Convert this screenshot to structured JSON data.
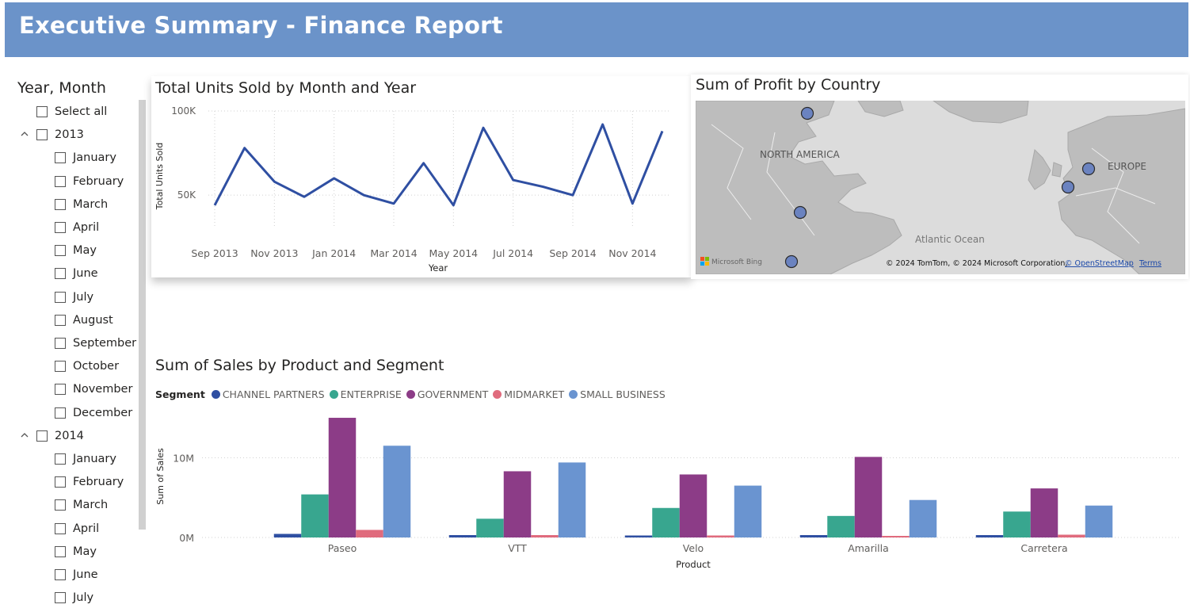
{
  "header": {
    "title": "Executive Summary - Finance Report"
  },
  "slicer": {
    "title": "Year, Month",
    "select_all": "Select all",
    "years": [
      {
        "label": "2013",
        "months": [
          "January",
          "February",
          "March",
          "April",
          "May",
          "June",
          "July",
          "August",
          "September",
          "October",
          "November",
          "December"
        ]
      },
      {
        "label": "2014",
        "months": [
          "January",
          "February",
          "March",
          "April",
          "May",
          "June",
          "July"
        ]
      }
    ]
  },
  "line_chart": {
    "title": "Total Units Sold by Month and Year",
    "chart_data": {
      "type": "line",
      "title": "Total Units Sold by Month and Year",
      "xlabel": "Year",
      "ylabel": "Total Units Sold",
      "x": [
        "Sep 2013",
        "Oct 2013",
        "Nov 2013",
        "Dec 2013",
        "Jan 2014",
        "Feb 2014",
        "Mar 2014",
        "Apr 2014",
        "May 2014",
        "Jun 2014",
        "Jul 2014",
        "Aug 2014",
        "Sep 2014",
        "Oct 2014",
        "Nov 2014",
        "Dec 2014"
      ],
      "x_tick_labels": [
        "Sep 2013",
        "Nov 2013",
        "Jan 2014",
        "Mar 2014",
        "May 2014",
        "Jul 2014",
        "Sep 2014",
        "Nov 2014"
      ],
      "y_tick_labels": [
        "100K",
        "50K"
      ],
      "y_ticks": [
        100000,
        50000
      ],
      "ylim": [
        35000,
        100000
      ],
      "series": [
        {
          "values": [
            44000,
            78000,
            58000,
            49000,
            60000,
            50000,
            45000,
            69000,
            44000,
            90000,
            59000,
            55000,
            50000,
            92000,
            45000,
            88000
          ]
        }
      ],
      "color": "#2f4fa2",
      "grid": true
    }
  },
  "map": {
    "title": "Sum of Profit by Country",
    "labels": {
      "north_america": "NORTH AMERICA",
      "europe": "EUROPE",
      "atlantic": "Atlantic Ocean"
    },
    "bing": "Microsoft Bing",
    "copyright": "© 2024 TomTom, © 2024 Microsoft Corporation,",
    "osm_link": "© OpenStreetMap",
    "terms_link": "Terms",
    "bubble_color": "#6b83c0"
  },
  "bar_chart": {
    "title": "Sum of Sales by Product and Segment",
    "legend_title": "Segment",
    "chart_data": {
      "type": "bar",
      "title": "Sum of Sales by Product and Segment",
      "xlabel": "Product",
      "ylabel": "Sum of Sales",
      "categories": [
        "Paseo",
        "VTT",
        "Velo",
        "Amarilla",
        "Carretera"
      ],
      "y_tick_labels": [
        "10M",
        "0M"
      ],
      "y_ticks": [
        10000000,
        0
      ],
      "ylim": [
        0,
        15500000
      ],
      "series": [
        {
          "name": "CHANNEL PARTNERS",
          "color": "#2f4fa2",
          "values": [
            450000,
            300000,
            250000,
            300000,
            300000
          ]
        },
        {
          "name": "ENTERPRISE",
          "color": "#38a68f",
          "values": [
            5400000,
            2350000,
            3700000,
            2700000,
            3250000
          ]
        },
        {
          "name": "GOVERNMENT",
          "color": "#8c3c87",
          "values": [
            15000000,
            8300000,
            7900000,
            10100000,
            6150000
          ]
        },
        {
          "name": "MIDMARKET",
          "color": "#e06b7d",
          "values": [
            950000,
            300000,
            250000,
            200000,
            350000
          ]
        },
        {
          "name": "SMALL BUSINESS",
          "color": "#6a94d0",
          "values": [
            11500000,
            9400000,
            6500000,
            4700000,
            4000000
          ]
        }
      ],
      "legend_position": "top-left",
      "grid": true
    }
  }
}
